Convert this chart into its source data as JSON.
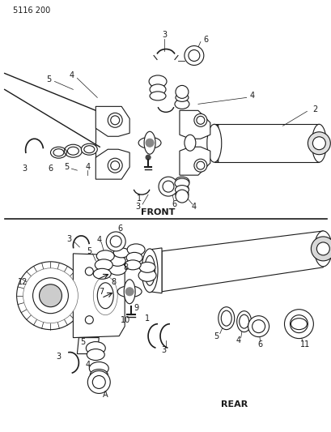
{
  "title": "5116 200",
  "front_label": "FRONT",
  "rear_label": "REAR",
  "bg_color": "#ffffff",
  "line_color": "#1a1a1a",
  "text_color": "#1a1a1a",
  "title_fontsize": 7,
  "label_fontsize": 8,
  "part_number_fontsize": 7,
  "fig_width": 4.1,
  "fig_height": 5.33,
  "dpi": 100
}
